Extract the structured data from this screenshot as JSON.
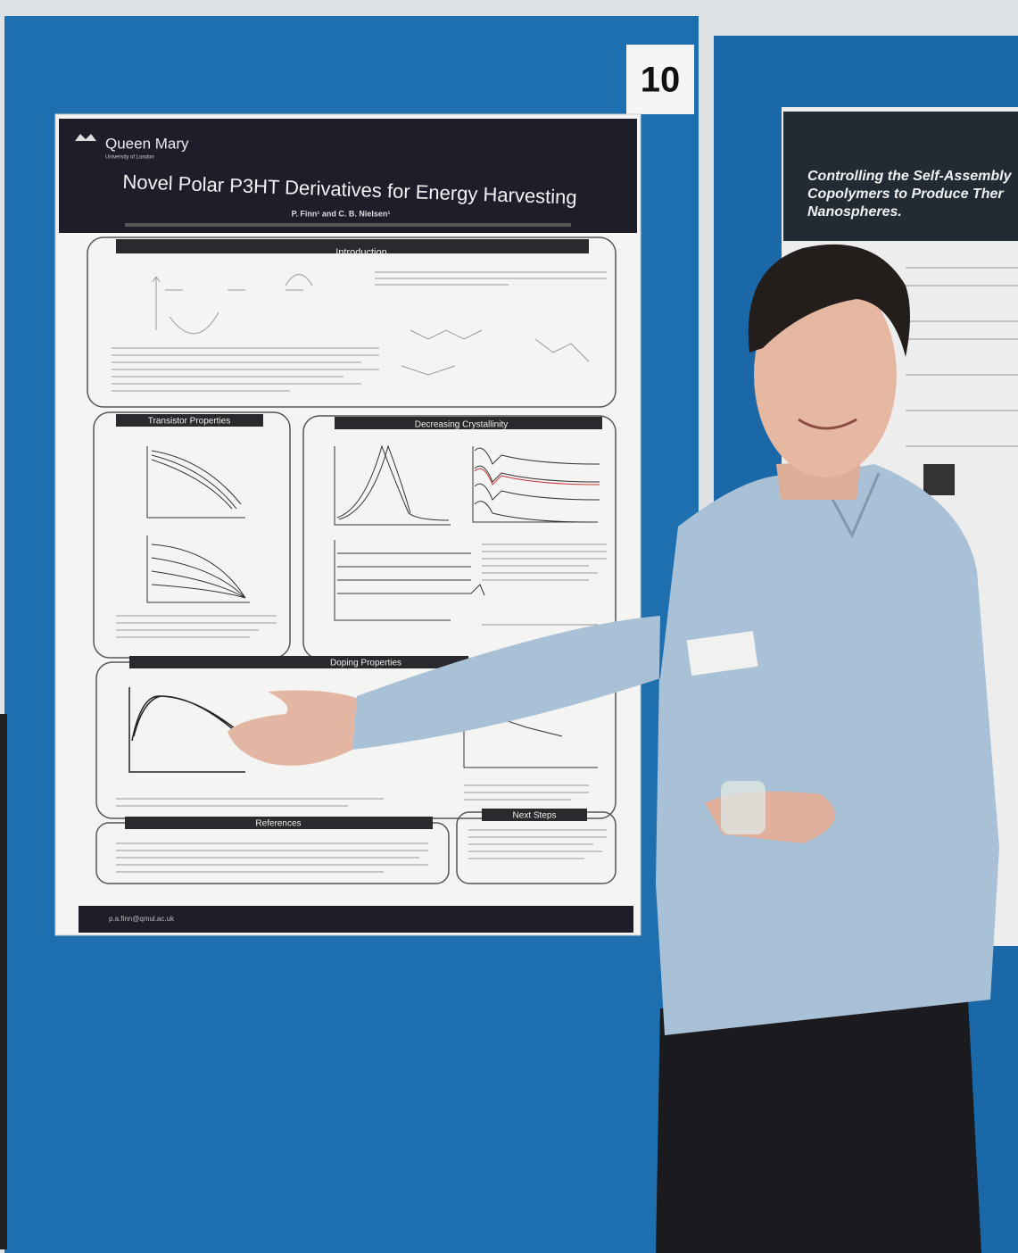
{
  "board_number": "10",
  "poster": {
    "logo": {
      "name": "Queen Mary",
      "subtitle": "University of London"
    },
    "title": "Novel Polar P3HT Derivatives for Energy Harvesting",
    "authors": "P. Finn¹ and C. B. Nielsen¹",
    "sections": [
      "Introduction",
      "Transistor Properties",
      "Decreasing Crystallinity",
      "Doping Properties",
      "References",
      "Next Steps"
    ],
    "email": "p.a.finn@qmul.ac.uk"
  },
  "neighbor_poster": {
    "title_lines": [
      "Controlling the Self-Assembly",
      "Copolymers to Produce Ther",
      "Nanospheres."
    ]
  }
}
